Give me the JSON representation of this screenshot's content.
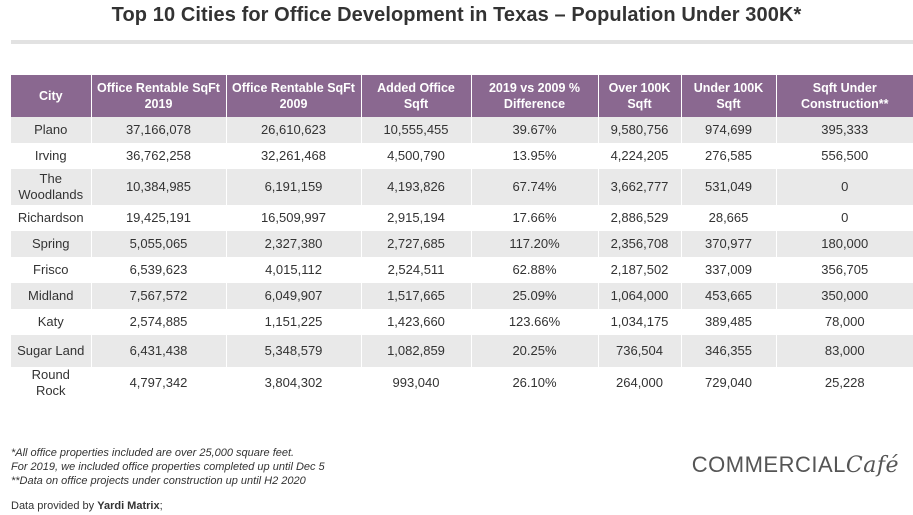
{
  "title": "Top 10 Cities for Office Development in Texas – Population Under 300K*",
  "chart_data": {
    "type": "table",
    "title": "Top 10 Cities for Office Development in Texas – Population Under 300K*",
    "columns": [
      "City",
      "Office Rentable SqFt 2019",
      "Office Rentable SqFt 2009",
      "Added Office Sqft",
      "2019 vs 2009 % Difference",
      "Over 100K Sqft",
      "Under 100K Sqft",
      "Sqft Under Construction**"
    ],
    "rows": [
      [
        "Plano",
        "37,166,078",
        "26,610,623",
        "10,555,455",
        "39.67%",
        "9,580,756",
        "974,699",
        "395,333"
      ],
      [
        "Irving",
        "36,762,258",
        "32,261,468",
        "4,500,790",
        "13.95%",
        "4,224,205",
        "276,585",
        "556,500"
      ],
      [
        "The Woodlands",
        "10,384,985",
        "6,191,159",
        "4,193,826",
        "67.74%",
        "3,662,777",
        "531,049",
        "0"
      ],
      [
        "Richardson",
        "19,425,191",
        "16,509,997",
        "2,915,194",
        "17.66%",
        "2,886,529",
        "28,665",
        "0"
      ],
      [
        "Spring",
        "5,055,065",
        "2,327,380",
        "2,727,685",
        "117.20%",
        "2,356,708",
        "370,977",
        "180,000"
      ],
      [
        "Frisco",
        "6,539,623",
        "4,015,112",
        "2,524,511",
        "62.88%",
        "2,187,502",
        "337,009",
        "356,705"
      ],
      [
        "Midland",
        "7,567,572",
        "6,049,907",
        "1,517,665",
        "25.09%",
        "1,064,000",
        "453,665",
        "350,000"
      ],
      [
        "Katy",
        "2,574,885",
        "1,151,225",
        "1,423,660",
        "123.66%",
        "1,034,175",
        "389,485",
        "78,000"
      ],
      [
        "Sugar Land",
        "6,431,438",
        "5,348,579",
        "1,082,859",
        "20.25%",
        "736,504",
        "346,355",
        "83,000"
      ],
      [
        "Round Rock",
        "4,797,342",
        "3,804,302",
        "993,040",
        "26.10%",
        "264,000",
        "729,040",
        "25,228"
      ]
    ]
  },
  "notes": [
    "*All office properties included are over 25,000 square feet.",
    "For 2019, we included office properties completed up until Dec 5",
    "**Data on office projects under construction up until H2 2020"
  ],
  "source": {
    "prefix": "Data provided by ",
    "name": "Yardi Matrix",
    "suffix": ";"
  },
  "logo": {
    "main": "COMMERCIAL",
    "script": "Café"
  },
  "colors": {
    "header_bg": "#8a6890",
    "stripe": "#e9e9e9"
  }
}
